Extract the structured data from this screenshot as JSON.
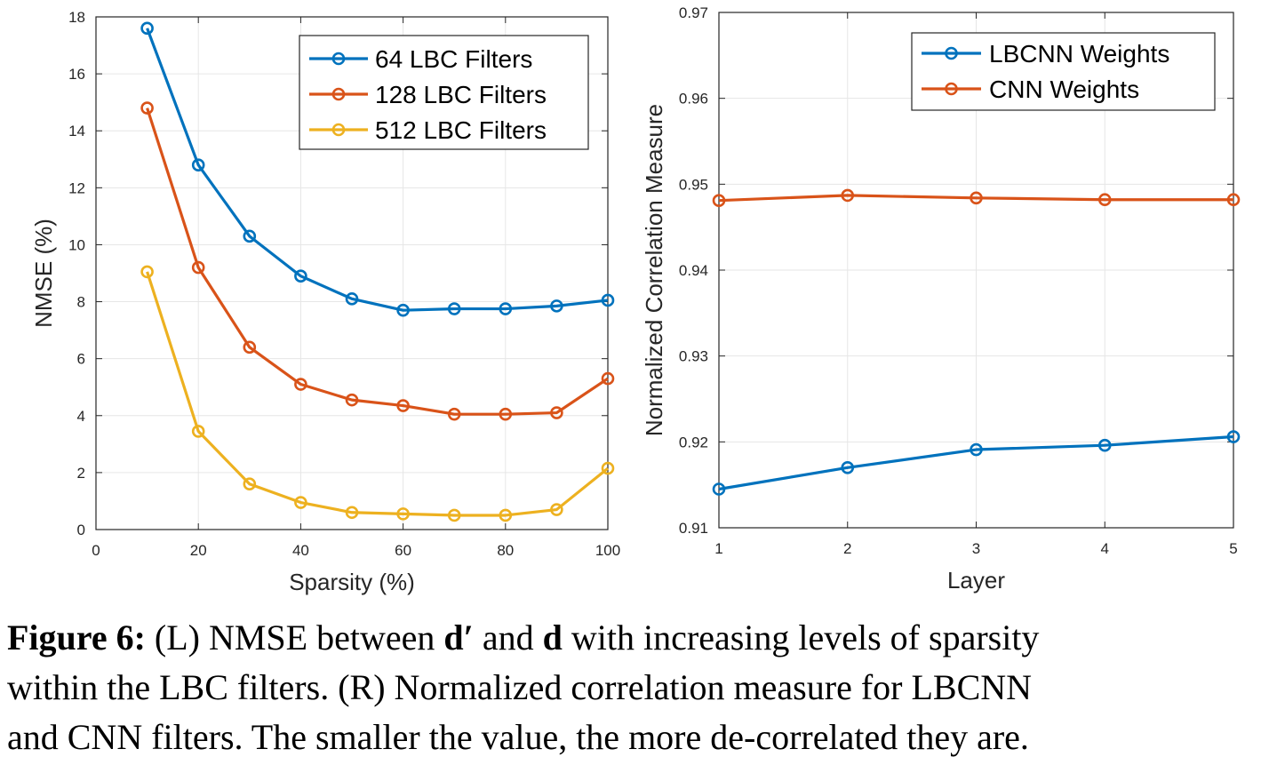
{
  "chart_data": [
    {
      "type": "line",
      "xlabel": "Sparsity (%)",
      "ylabel": "NMSE (%)",
      "xlim": [
        0,
        100
      ],
      "ylim": [
        0,
        18
      ],
      "xticks": [
        0,
        20,
        40,
        60,
        80,
        100
      ],
      "yticks": [
        0,
        2,
        4,
        6,
        8,
        10,
        12,
        14,
        16,
        18
      ],
      "grid": true,
      "legend_position": "top-right",
      "x": [
        10,
        20,
        30,
        40,
        50,
        60,
        70,
        80,
        90,
        100
      ],
      "series": [
        {
          "name": "64 LBC Filters",
          "color": "#0072BD",
          "values": [
            17.6,
            12.8,
            10.3,
            8.9,
            8.1,
            7.7,
            7.75,
            7.75,
            7.85,
            8.05
          ]
        },
        {
          "name": "128 LBC Filters",
          "color": "#D95319",
          "values": [
            14.8,
            9.2,
            6.4,
            5.1,
            4.55,
            4.35,
            4.05,
            4.05,
            4.1,
            5.3
          ]
        },
        {
          "name": "512 LBC Filters",
          "color": "#EDB120",
          "values": [
            9.05,
            3.45,
            1.6,
            0.95,
            0.6,
            0.55,
            0.5,
            0.5,
            0.7,
            2.15
          ]
        }
      ]
    },
    {
      "type": "line",
      "xlabel": "Layer",
      "ylabel": "Normalized Correlation Measure",
      "xlim": [
        1,
        5
      ],
      "ylim": [
        0.91,
        0.97
      ],
      "xticks": [
        1,
        2,
        3,
        4,
        5
      ],
      "yticks": [
        0.91,
        0.92,
        0.93,
        0.94,
        0.95,
        0.96,
        0.97
      ],
      "grid": true,
      "legend_position": "top-right",
      "x": [
        1,
        2,
        3,
        4,
        5
      ],
      "series": [
        {
          "name": "LBCNN Weights",
          "color": "#0072BD",
          "values": [
            0.9145,
            0.917,
            0.9191,
            0.9196,
            0.9206
          ]
        },
        {
          "name": "CNN Weights",
          "color": "#D95319",
          "values": [
            0.9481,
            0.9487,
            0.9484,
            0.9482,
            0.9482
          ]
        }
      ]
    }
  ],
  "caption": {
    "label": "Figure 6:",
    "line1_a": "(L) NMSE between ",
    "symbol_dprime": "d′",
    "line1_b": " and ",
    "symbol_d": "d",
    "line1_c": " with increasing levels of sparsity",
    "line2": "within the LBC filters. (R) Normalized correlation measure for LBCNN",
    "line3": "and CNN filters. The smaller the value, the more de-correlated they are."
  }
}
